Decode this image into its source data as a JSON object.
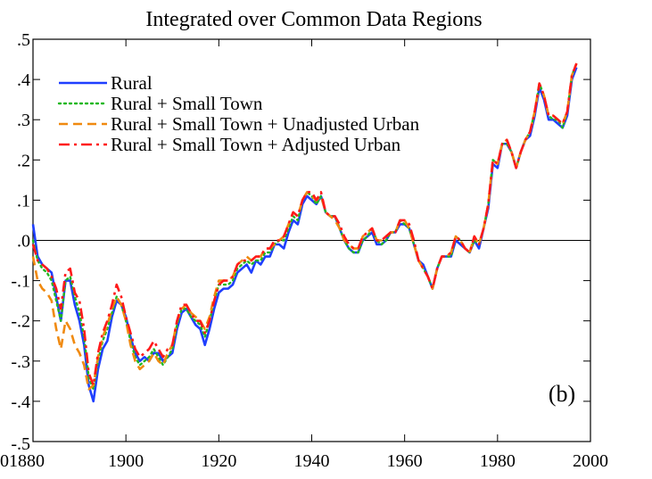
{
  "title": "Integrated over Common Data Regions",
  "panel_label": "(b)",
  "colors": {
    "rural": "#1f3fff",
    "small_town": "#22b822",
    "unadjusted": "#f08a10",
    "adjusted": "#ff1a1a",
    "axis": "#000000"
  },
  "chart_data": {
    "type": "line",
    "title": "Integrated over Common Data Regions",
    "xlabel": "",
    "ylabel": "",
    "xlim": [
      1880,
      2000
    ],
    "ylim": [
      -0.5,
      0.5
    ],
    "x_ticks": [
      1880,
      1900,
      1920,
      1940,
      1960,
      1980,
      2000
    ],
    "x_tick_labels": [
      "01880",
      "1900",
      "1920",
      "1940",
      "1960",
      "1980",
      "2000"
    ],
    "y_ticks": [
      -0.5,
      -0.4,
      -0.3,
      -0.2,
      -0.1,
      0.0,
      0.1,
      0.2,
      0.3,
      0.4,
      0.5
    ],
    "y_tick_labels": [
      "-.5",
      "-.4",
      "-.3",
      "-.2",
      "-.1",
      ".0",
      ".1",
      ".2",
      ".3",
      ".4",
      ".5"
    ],
    "zero_line": true,
    "grid": false,
    "legend_position": "top-left",
    "series": [
      {
        "name": "Rural",
        "style": "solid",
        "color": "#1f3fff",
        "x": [
          1880,
          1881,
          1882,
          1883,
          1884,
          1885,
          1886,
          1887,
          1888,
          1889,
          1890,
          1891,
          1892,
          1893,
          1894,
          1895,
          1896,
          1897,
          1898,
          1899,
          1900,
          1901,
          1902,
          1903,
          1904,
          1905,
          1906,
          1907,
          1908,
          1909,
          1910,
          1911,
          1912,
          1913,
          1914,
          1915,
          1916,
          1917,
          1918,
          1919,
          1920,
          1921,
          1922,
          1923,
          1924,
          1925,
          1926,
          1927,
          1928,
          1929,
          1930,
          1931,
          1932,
          1933,
          1934,
          1935,
          1936,
          1937,
          1938,
          1939,
          1940,
          1941,
          1942,
          1943,
          1944,
          1945,
          1946,
          1947,
          1948,
          1949,
          1950,
          1951,
          1952,
          1953,
          1954,
          1955,
          1956,
          1957,
          1958,
          1959,
          1960,
          1961,
          1962,
          1963,
          1964,
          1965,
          1966,
          1967,
          1968,
          1969,
          1970,
          1971,
          1972,
          1973,
          1974,
          1975,
          1976,
          1977,
          1978,
          1979,
          1980,
          1981,
          1982,
          1983,
          1984,
          1985,
          1986,
          1987,
          1988,
          1989,
          1990,
          1991,
          1992,
          1993,
          1994,
          1995,
          1996,
          1997
        ],
        "y": [
          0.04,
          -0.04,
          -0.06,
          -0.07,
          -0.08,
          -0.14,
          -0.2,
          -0.1,
          -0.1,
          -0.16,
          -0.2,
          -0.26,
          -0.36,
          -0.4,
          -0.32,
          -0.27,
          -0.25,
          -0.19,
          -0.15,
          -0.16,
          -0.19,
          -0.24,
          -0.28,
          -0.3,
          -0.29,
          -0.3,
          -0.28,
          -0.28,
          -0.3,
          -0.29,
          -0.28,
          -0.22,
          -0.18,
          -0.17,
          -0.19,
          -0.21,
          -0.22,
          -0.26,
          -0.22,
          -0.17,
          -0.13,
          -0.12,
          -0.12,
          -0.11,
          -0.08,
          -0.07,
          -0.06,
          -0.08,
          -0.05,
          -0.06,
          -0.04,
          -0.04,
          -0.01,
          -0.01,
          -0.02,
          0.02,
          0.05,
          0.04,
          0.09,
          0.11,
          0.1,
          0.09,
          0.11,
          0.07,
          0.06,
          0.06,
          0.03,
          0.0,
          -0.02,
          -0.03,
          -0.03,
          0.0,
          0.01,
          0.02,
          -0.01,
          -0.01,
          0.0,
          0.02,
          0.02,
          0.04,
          0.04,
          0.03,
          -0.01,
          -0.05,
          -0.06,
          -0.09,
          -0.12,
          -0.07,
          -0.04,
          -0.04,
          -0.04,
          0.0,
          -0.01,
          -0.02,
          -0.03,
          0.0,
          -0.02,
          0.03,
          0.08,
          0.19,
          0.18,
          0.24,
          0.24,
          0.22,
          0.18,
          0.22,
          0.25,
          0.26,
          0.31,
          0.38,
          0.35,
          0.3,
          0.3,
          0.29,
          0.28,
          0.31,
          0.4,
          0.43
        ]
      },
      {
        "name": "Rural + Small Town",
        "style": "dotted",
        "color": "#22b822",
        "x": [
          1880,
          1881,
          1882,
          1883,
          1884,
          1885,
          1886,
          1887,
          1888,
          1889,
          1890,
          1891,
          1892,
          1893,
          1894,
          1895,
          1896,
          1897,
          1898,
          1899,
          1900,
          1901,
          1902,
          1903,
          1904,
          1905,
          1906,
          1907,
          1908,
          1909,
          1910,
          1911,
          1912,
          1913,
          1914,
          1915,
          1916,
          1917,
          1918,
          1919,
          1920,
          1921,
          1922,
          1923,
          1924,
          1925,
          1926,
          1927,
          1928,
          1929,
          1930,
          1931,
          1932,
          1933,
          1934,
          1935,
          1936,
          1937,
          1938,
          1939,
          1940,
          1941,
          1942,
          1943,
          1944,
          1945,
          1946,
          1947,
          1948,
          1949,
          1950,
          1951,
          1952,
          1953,
          1954,
          1955,
          1956,
          1957,
          1958,
          1959,
          1960,
          1961,
          1962,
          1963,
          1964,
          1965,
          1966,
          1967,
          1968,
          1969,
          1970,
          1971,
          1972,
          1973,
          1974,
          1975,
          1976,
          1977,
          1978,
          1979,
          1980,
          1981,
          1982,
          1983,
          1984,
          1985,
          1986,
          1987,
          1988,
          1989,
          1990,
          1991,
          1992,
          1993,
          1994,
          1995,
          1996,
          1997
        ],
        "y": [
          0.0,
          -0.05,
          -0.07,
          -0.08,
          -0.1,
          -0.15,
          -0.2,
          -0.1,
          -0.09,
          -0.14,
          -0.18,
          -0.24,
          -0.34,
          -0.37,
          -0.3,
          -0.25,
          -0.22,
          -0.18,
          -0.14,
          -0.16,
          -0.2,
          -0.25,
          -0.29,
          -0.31,
          -0.3,
          -0.29,
          -0.27,
          -0.29,
          -0.31,
          -0.29,
          -0.27,
          -0.21,
          -0.17,
          -0.17,
          -0.19,
          -0.2,
          -0.21,
          -0.24,
          -0.2,
          -0.15,
          -0.11,
          -0.11,
          -0.11,
          -0.1,
          -0.07,
          -0.06,
          -0.05,
          -0.06,
          -0.05,
          -0.05,
          -0.03,
          -0.03,
          -0.01,
          0.0,
          0.0,
          0.03,
          0.06,
          0.05,
          0.1,
          0.12,
          0.11,
          0.09,
          0.11,
          0.07,
          0.06,
          0.06,
          0.03,
          0.0,
          -0.02,
          -0.03,
          -0.03,
          0.0,
          0.01,
          0.03,
          0.0,
          -0.01,
          0.0,
          0.02,
          0.02,
          0.05,
          0.04,
          0.03,
          -0.01,
          -0.05,
          -0.07,
          -0.09,
          -0.12,
          -0.07,
          -0.04,
          -0.04,
          -0.04,
          0.01,
          0.0,
          -0.02,
          -0.03,
          0.0,
          -0.01,
          0.03,
          0.09,
          0.2,
          0.19,
          0.24,
          0.24,
          0.22,
          0.18,
          0.22,
          0.25,
          0.27,
          0.32,
          0.39,
          0.36,
          0.31,
          0.3,
          0.3,
          0.28,
          0.32,
          0.41,
          0.44
        ]
      },
      {
        "name": "Rural + Small Town + Unadjusted Urban",
        "style": "dashed",
        "color": "#f08a10",
        "x": [
          1880,
          1881,
          1882,
          1883,
          1884,
          1885,
          1886,
          1887,
          1888,
          1889,
          1890,
          1891,
          1892,
          1893,
          1894,
          1895,
          1896,
          1897,
          1898,
          1899,
          1900,
          1901,
          1902,
          1903,
          1904,
          1905,
          1906,
          1907,
          1908,
          1909,
          1910,
          1911,
          1912,
          1913,
          1914,
          1915,
          1916,
          1917,
          1918,
          1919,
          1920,
          1921,
          1922,
          1923,
          1924,
          1925,
          1926,
          1927,
          1928,
          1929,
          1930,
          1931,
          1932,
          1933,
          1934,
          1935,
          1936,
          1937,
          1938,
          1939,
          1940,
          1941,
          1942,
          1943,
          1944,
          1945,
          1946,
          1947,
          1948,
          1949,
          1950,
          1951,
          1952,
          1953,
          1954,
          1955,
          1956,
          1957,
          1958,
          1959,
          1960,
          1961,
          1962,
          1963,
          1964,
          1965,
          1966,
          1967,
          1968,
          1969,
          1970,
          1971,
          1972,
          1973,
          1974,
          1975,
          1976,
          1977,
          1978,
          1979,
          1980,
          1981,
          1982,
          1983,
          1984,
          1985,
          1986,
          1987,
          1988,
          1989,
          1990,
          1991,
          1992,
          1993,
          1994,
          1995,
          1996,
          1997
        ],
        "y": [
          -0.04,
          -0.1,
          -0.12,
          -0.13,
          -0.15,
          -0.22,
          -0.27,
          -0.2,
          -0.22,
          -0.26,
          -0.28,
          -0.31,
          -0.37,
          -0.36,
          -0.29,
          -0.24,
          -0.21,
          -0.17,
          -0.14,
          -0.16,
          -0.2,
          -0.26,
          -0.3,
          -0.32,
          -0.31,
          -0.3,
          -0.28,
          -0.3,
          -0.31,
          -0.28,
          -0.26,
          -0.2,
          -0.17,
          -0.16,
          -0.18,
          -0.19,
          -0.2,
          -0.22,
          -0.19,
          -0.14,
          -0.1,
          -0.1,
          -0.1,
          -0.09,
          -0.06,
          -0.05,
          -0.04,
          -0.05,
          -0.04,
          -0.04,
          -0.02,
          -0.02,
          -0.01,
          0.0,
          0.01,
          0.04,
          0.07,
          0.06,
          0.1,
          0.12,
          0.11,
          0.1,
          0.11,
          0.07,
          0.06,
          0.05,
          0.03,
          0.0,
          -0.01,
          -0.02,
          -0.02,
          0.01,
          0.02,
          0.03,
          0.0,
          0.0,
          0.01,
          0.02,
          0.02,
          0.05,
          0.05,
          0.03,
          -0.01,
          -0.05,
          -0.07,
          -0.09,
          -0.12,
          -0.07,
          -0.04,
          -0.04,
          -0.03,
          0.01,
          0.0,
          -0.02,
          -0.03,
          0.01,
          -0.01,
          0.03,
          0.09,
          0.2,
          0.19,
          0.24,
          0.25,
          0.22,
          0.18,
          0.22,
          0.25,
          0.27,
          0.32,
          0.39,
          0.36,
          0.31,
          0.31,
          0.3,
          0.29,
          0.32,
          0.41,
          0.44
        ]
      },
      {
        "name": "Rural + Small Town + Adjusted Urban",
        "style": "dashdot",
        "color": "#ff1a1a",
        "x": [
          1880,
          1881,
          1882,
          1883,
          1884,
          1885,
          1886,
          1887,
          1888,
          1889,
          1890,
          1891,
          1892,
          1893,
          1894,
          1895,
          1896,
          1897,
          1898,
          1899,
          1900,
          1901,
          1902,
          1903,
          1904,
          1905,
          1906,
          1907,
          1908,
          1909,
          1910,
          1911,
          1912,
          1913,
          1914,
          1915,
          1916,
          1917,
          1918,
          1919,
          1920,
          1921,
          1922,
          1923,
          1924,
          1925,
          1926,
          1927,
          1928,
          1929,
          1930,
          1931,
          1932,
          1933,
          1934,
          1935,
          1936,
          1937,
          1938,
          1939,
          1940,
          1941,
          1942,
          1943,
          1944,
          1945,
          1946,
          1947,
          1948,
          1949,
          1950,
          1951,
          1952,
          1953,
          1954,
          1955,
          1956,
          1957,
          1958,
          1959,
          1960,
          1961,
          1962,
          1963,
          1964,
          1965,
          1966,
          1967,
          1968,
          1969,
          1970,
          1971,
          1972,
          1973,
          1974,
          1975,
          1976,
          1977,
          1978,
          1979,
          1980,
          1981,
          1982,
          1983,
          1984,
          1985,
          1986,
          1987,
          1988,
          1989,
          1990,
          1991,
          1992,
          1993,
          1994,
          1995,
          1996,
          1997
        ],
        "y": [
          -0.01,
          -0.05,
          -0.06,
          -0.07,
          -0.09,
          -0.12,
          -0.17,
          -0.08,
          -0.07,
          -0.13,
          -0.15,
          -0.22,
          -0.33,
          -0.36,
          -0.28,
          -0.23,
          -0.2,
          -0.16,
          -0.11,
          -0.14,
          -0.19,
          -0.23,
          -0.27,
          -0.29,
          -0.28,
          -0.27,
          -0.25,
          -0.27,
          -0.29,
          -0.27,
          -0.26,
          -0.2,
          -0.16,
          -0.16,
          -0.18,
          -0.2,
          -0.2,
          -0.23,
          -0.2,
          -0.15,
          -0.11,
          -0.1,
          -0.1,
          -0.09,
          -0.06,
          -0.05,
          -0.05,
          -0.05,
          -0.04,
          -0.04,
          -0.02,
          -0.02,
          0.0,
          0.0,
          0.01,
          0.04,
          0.07,
          0.06,
          0.1,
          0.12,
          0.12,
          0.1,
          0.12,
          0.07,
          0.06,
          0.06,
          0.04,
          0.01,
          -0.01,
          -0.02,
          -0.02,
          0.01,
          0.02,
          0.03,
          0.0,
          0.0,
          0.01,
          0.02,
          0.02,
          0.05,
          0.05,
          0.04,
          0.0,
          -0.05,
          -0.07,
          -0.09,
          -0.12,
          -0.07,
          -0.04,
          -0.04,
          -0.03,
          0.01,
          0.0,
          -0.02,
          -0.03,
          0.01,
          -0.01,
          0.03,
          0.09,
          0.2,
          0.19,
          0.24,
          0.25,
          0.22,
          0.18,
          0.22,
          0.25,
          0.27,
          0.32,
          0.39,
          0.36,
          0.31,
          0.31,
          0.3,
          0.29,
          0.32,
          0.41,
          0.44
        ]
      }
    ]
  }
}
